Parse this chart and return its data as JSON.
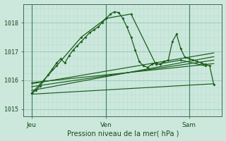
{
  "bg_color": "#cce8dd",
  "grid_major_color": "#99ccbb",
  "grid_minor_color": "#bbddd0",
  "line_color": "#1a5c1a",
  "xlabel": "Pression niveau de la mer( hPa )",
  "yticks": [
    1015,
    1016,
    1017,
    1018
  ],
  "ylim": [
    1014.75,
    1018.65
  ],
  "xlim": [
    0,
    48
  ],
  "xtick_positions": [
    2,
    20,
    40
  ],
  "xtick_labels": [
    "Jeu",
    "Ven",
    "Sam"
  ],
  "vline_positions": [
    2,
    20,
    40
  ],
  "main_x": [
    2,
    3,
    4,
    5,
    6,
    7,
    8,
    9,
    10,
    11,
    12,
    13,
    14,
    15,
    16,
    17,
    18,
    19,
    20,
    21,
    22,
    23,
    24,
    25,
    26,
    27,
    28,
    29,
    30,
    31,
    32,
    33,
    34,
    35,
    36,
    37,
    38,
    39,
    40,
    41,
    42,
    43,
    44,
    45,
    46
  ],
  "main_y": [
    1015.55,
    1015.65,
    1015.8,
    1016.0,
    1016.2,
    1016.4,
    1016.6,
    1016.75,
    1016.6,
    1016.85,
    1017.05,
    1017.2,
    1017.35,
    1017.5,
    1017.65,
    1017.75,
    1017.85,
    1018.0,
    1018.15,
    1018.3,
    1018.38,
    1018.35,
    1018.15,
    1017.85,
    1017.5,
    1017.05,
    1016.65,
    1016.5,
    1016.45,
    1016.55,
    1016.6,
    1016.55,
    1016.65,
    1016.7,
    1017.35,
    1017.6,
    1017.1,
    1016.8,
    1016.75,
    1016.7,
    1016.65,
    1016.6,
    1016.55,
    1016.5,
    1015.85
  ],
  "line2_x": [
    2,
    8,
    14,
    20,
    26,
    32,
    38,
    44
  ],
  "line2_y": [
    1015.55,
    1016.5,
    1017.5,
    1018.15,
    1018.3,
    1016.55,
    1016.7,
    1016.5
  ],
  "bands": [
    {
      "x": [
        2,
        46
      ],
      "y": [
        1015.92,
        1016.58
      ]
    },
    {
      "x": [
        2,
        46
      ],
      "y": [
        1015.78,
        1016.7
      ]
    },
    {
      "x": [
        2,
        46
      ],
      "y": [
        1015.65,
        1016.82
      ]
    },
    {
      "x": [
        2,
        46
      ],
      "y": [
        1015.52,
        1015.88
      ]
    },
    {
      "x": [
        2,
        46
      ],
      "y": [
        1015.88,
        1016.95
      ]
    }
  ]
}
